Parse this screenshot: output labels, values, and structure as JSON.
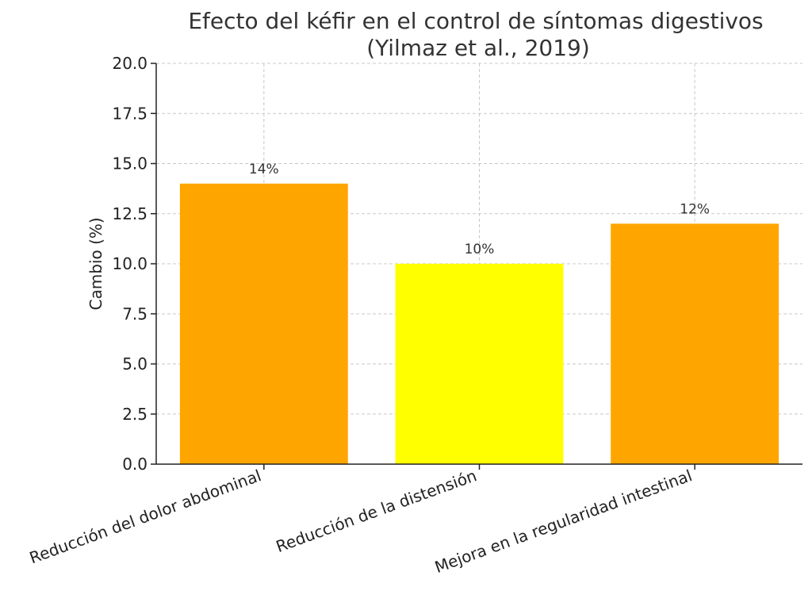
{
  "chart_data": {
    "type": "bar",
    "title_line1": "Efecto del kéfir en el control de síntomas digestivos",
    "title_line2": "(Yilmaz et al., 2019)",
    "xlabel": "",
    "ylabel": "Cambio (%)",
    "ylim": [
      0,
      20
    ],
    "yticks": [
      "0.0",
      "2.5",
      "5.0",
      "7.5",
      "10.0",
      "12.5",
      "15.0",
      "17.5",
      "20.0"
    ],
    "ytick_values": [
      0,
      2.5,
      5,
      7.5,
      10,
      12.5,
      15,
      17.5,
      20
    ],
    "grid": true,
    "categories": [
      "Reducción del dolor abdominal",
      "Reducción de la distensión",
      "Mejora en la regularidad intestinal"
    ],
    "values": [
      14,
      10,
      12
    ],
    "data_labels": [
      "14%",
      "10%",
      "12%"
    ],
    "colors": [
      "#FFA500",
      "#FFFF00",
      "#FFA500"
    ]
  }
}
